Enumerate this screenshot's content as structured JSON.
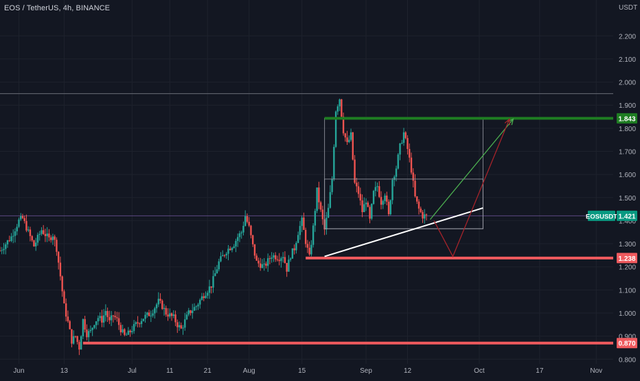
{
  "header": {
    "symbol_title": "EOS / TetherUS, 4h, BINANCE"
  },
  "colors": {
    "background": "#131722",
    "grid": "#1e222d",
    "axis_text": "#b2b5be",
    "candle_up": "#26a69a",
    "candle_down": "#ef5350",
    "resistance": "#1e7d22",
    "support": "#f05a5e",
    "trendline": "#ffffff",
    "bull_arrow": "#4caf50",
    "bear_arrow": "#a5232a",
    "box_outline": "#9598a1",
    "last_price_tag": "#089981",
    "horizontal_ray": "#6a6d78"
  },
  "chart_data": {
    "type": "candlestick",
    "symbol": "EOSUSDT",
    "quote_currency": "USDT",
    "timeframe": "4h",
    "exchange": "BINANCE",
    "ylim": [
      0.78,
      2.29
    ],
    "y_ticks": [
      "2.200",
      "2.100",
      "2.000",
      "1.900",
      "1.800",
      "1.700",
      "1.600",
      "1.500",
      "1.400",
      "1.300",
      "1.200",
      "1.100",
      "1.000",
      "0.900",
      "0.800"
    ],
    "x_ticks": [
      {
        "label": "Jun",
        "day": 1
      },
      {
        "label": "13",
        "day": 13
      },
      {
        "label": "Jul",
        "day": 31
      },
      {
        "label": "11",
        "day": 41
      },
      {
        "label": "21",
        "day": 51
      },
      {
        "label": "Aug",
        "day": 62
      },
      {
        "label": "15",
        "day": 76
      },
      {
        "label": "Sep",
        "day": 93
      },
      {
        "label": "12",
        "day": 104
      },
      {
        "label": "Oct",
        "day": 123
      },
      {
        "label": "17",
        "day": 139
      },
      {
        "label": "Nov",
        "day": 154
      }
    ],
    "xlim": [
      -4,
      158.5
    ],
    "price_path": [
      [
        -4,
        1.27
      ],
      [
        -1,
        1.33
      ],
      [
        1,
        1.4
      ],
      [
        2,
        1.41
      ],
      [
        4,
        1.33
      ],
      [
        5,
        1.29
      ],
      [
        7,
        1.36
      ],
      [
        9,
        1.32
      ],
      [
        10,
        1.34
      ],
      [
        11,
        1.28
      ],
      [
        12,
        1.16
      ],
      [
        13,
        1.03
      ],
      [
        14,
        0.96
      ],
      [
        15,
        0.88
      ],
      [
        16,
        0.9
      ],
      [
        17,
        0.85
      ],
      [
        18,
        0.97
      ],
      [
        19,
        0.91
      ],
      [
        20,
        0.92
      ],
      [
        21,
        0.96
      ],
      [
        22,
        0.98
      ],
      [
        23,
        0.97
      ],
      [
        24,
        1.01
      ],
      [
        25,
        0.96
      ],
      [
        26,
        0.99
      ],
      [
        27,
        0.97
      ],
      [
        28,
        0.93
      ],
      [
        29,
        0.9
      ],
      [
        30,
        0.91
      ],
      [
        32,
        0.95
      ],
      [
        34,
        0.98
      ],
      [
        36,
        1.0
      ],
      [
        38,
        1.05
      ],
      [
        39,
        1.03
      ],
      [
        40,
        1.0
      ],
      [
        42,
        0.98
      ],
      [
        43,
        0.95
      ],
      [
        44,
        0.93
      ],
      [
        46,
        1.0
      ],
      [
        48,
        1.03
      ],
      [
        50,
        1.08
      ],
      [
        52,
        1.12
      ],
      [
        54,
        1.22
      ],
      [
        56,
        1.27
      ],
      [
        58,
        1.3
      ],
      [
        59,
        1.33
      ],
      [
        60,
        1.35
      ],
      [
        61,
        1.42
      ],
      [
        62,
        1.37
      ],
      [
        63,
        1.29
      ],
      [
        64,
        1.22
      ],
      [
        66,
        1.2
      ],
      [
        68,
        1.25
      ],
      [
        70,
        1.24
      ],
      [
        71,
        1.25
      ],
      [
        72,
        1.19
      ],
      [
        73,
        1.25
      ],
      [
        74,
        1.28
      ],
      [
        75,
        1.35
      ],
      [
        76,
        1.4
      ],
      [
        77,
        1.31
      ],
      [
        78,
        1.24
      ],
      [
        79,
        1.37
      ],
      [
        80,
        1.53
      ],
      [
        81,
        1.44
      ],
      [
        82,
        1.36
      ],
      [
        83,
        1.45
      ],
      [
        84,
        1.58
      ],
      [
        85,
        1.88
      ],
      [
        86,
        1.93
      ],
      [
        87,
        1.79
      ],
      [
        88,
        1.73
      ],
      [
        89,
        1.77
      ],
      [
        90,
        1.56
      ],
      [
        91,
        1.52
      ],
      [
        92,
        1.44
      ],
      [
        93,
        1.49
      ],
      [
        94,
        1.4
      ],
      [
        95,
        1.52
      ],
      [
        96,
        1.55
      ],
      [
        97,
        1.48
      ],
      [
        98,
        1.52
      ],
      [
        99,
        1.42
      ],
      [
        100,
        1.58
      ],
      [
        101,
        1.63
      ],
      [
        102,
        1.72
      ],
      [
        103,
        1.78
      ],
      [
        104,
        1.71
      ],
      [
        105,
        1.62
      ],
      [
        106,
        1.5
      ],
      [
        107,
        1.45
      ],
      [
        108,
        1.42
      ],
      [
        109,
        1.421
      ]
    ],
    "horizontal_lines": [
      {
        "name": "resistance",
        "price": 1.843,
        "from_day": 82,
        "label": "1.843"
      },
      {
        "name": "support-upper",
        "price": 1.238,
        "from_day": 77,
        "label": "1.238"
      },
      {
        "name": "support-lower",
        "price": 0.87,
        "from_day": 18,
        "label": "0.870"
      },
      {
        "name": "high-ray",
        "price": 1.95,
        "from_day": -4
      }
    ],
    "last_price": {
      "symbol": "EOSUSDT",
      "value": "1.421",
      "price": 1.421
    },
    "rectangles": [
      {
        "name": "resistance-zone",
        "from_day": 82,
        "to_day": 124,
        "top": 1.843,
        "bottom": 1.365
      },
      {
        "name": "consolidation-box",
        "from_day": 82,
        "to_day": 124,
        "top": 1.58,
        "bottom": 1.365
      }
    ],
    "trendline": {
      "from": [
        82,
        1.245
      ],
      "to": [
        124,
        1.455
      ]
    },
    "arrows": [
      {
        "name": "bullish-projection-arrow",
        "points": [
          [
            110,
            1.405
          ],
          [
            132,
            1.84
          ]
        ]
      },
      {
        "name": "bearish-projection-arrow",
        "points": [
          [
            111,
            1.4
          ],
          [
            116,
            1.245
          ],
          [
            131,
            1.84
          ]
        ]
      }
    ]
  }
}
